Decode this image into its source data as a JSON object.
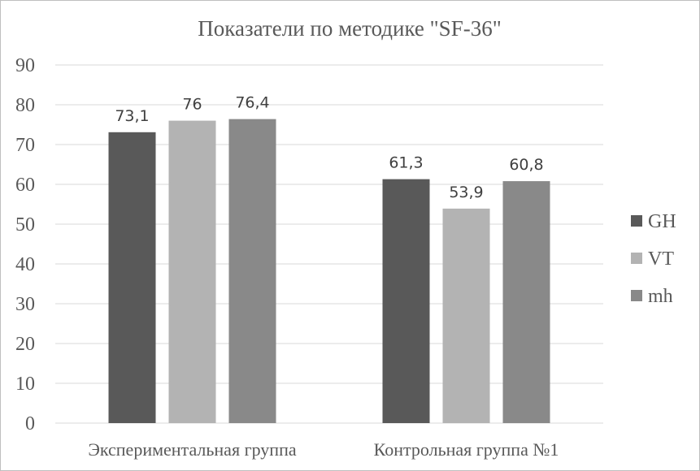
{
  "chart_data": {
    "type": "bar",
    "title": "Показатели  по методике \"SF-36\"",
    "categories": [
      "Экспериментальная группа",
      "Контрольная группа №1"
    ],
    "series": [
      {
        "name": "GH",
        "values": [
          73.1,
          61.3
        ],
        "labels": [
          "73,1",
          "61,3"
        ],
        "color": "#595959"
      },
      {
        "name": "VT",
        "values": [
          76,
          53.9
        ],
        "labels": [
          "76",
          "53,9"
        ],
        "color": "#b3b3b3"
      },
      {
        "name": "mh",
        "values": [
          76.4,
          60.8
        ],
        "labels": [
          "76,4",
          "60,8"
        ],
        "color": "#898989"
      }
    ],
    "ylim": [
      0,
      90
    ],
    "yticks": [
      "0",
      "10",
      "20",
      "30",
      "40",
      "50",
      "60",
      "70",
      "80",
      "90"
    ],
    "grid": true,
    "legend": "right",
    "xlabel": "",
    "ylabel": ""
  }
}
